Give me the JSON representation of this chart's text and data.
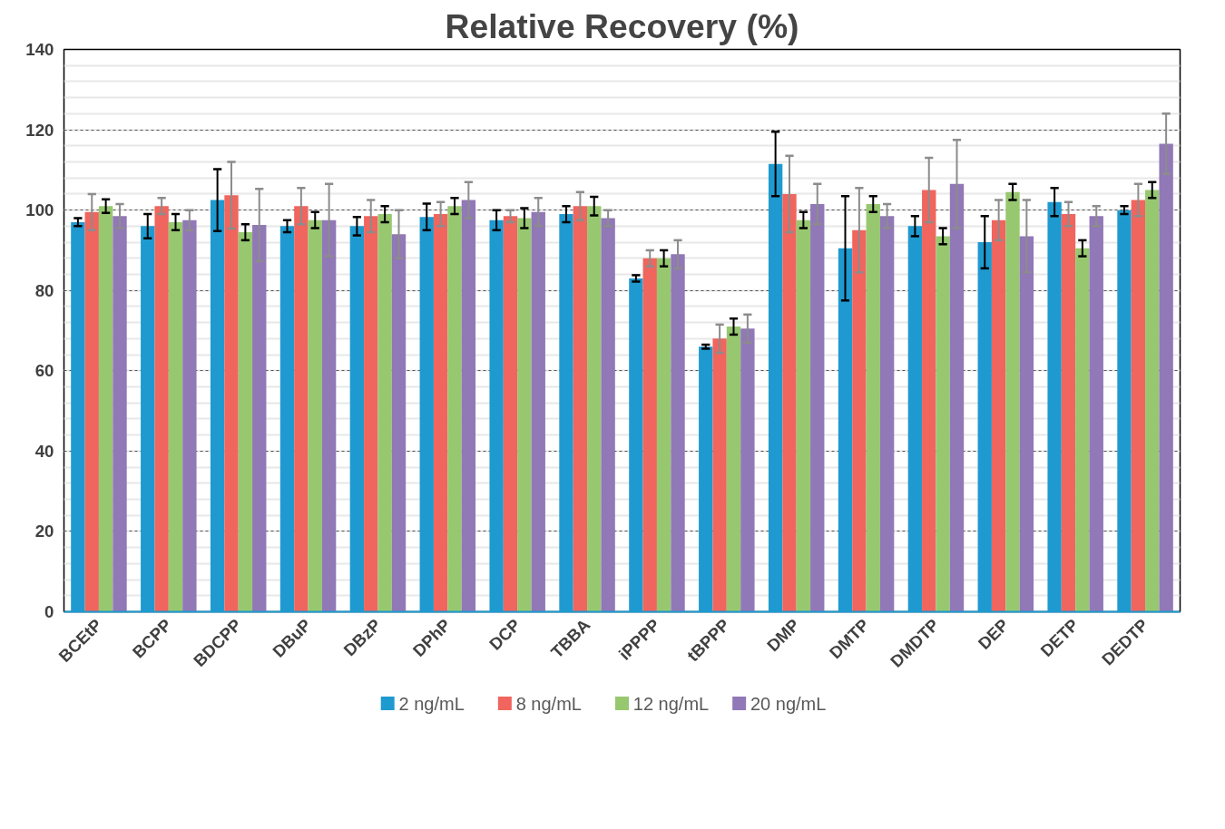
{
  "chart_data": {
    "type": "bar",
    "title": "Relative Recovery (%)",
    "categories": [
      "BCEtP",
      "BCPP",
      "BDCPP",
      "DBuP",
      "DBzP",
      "DPhP",
      "DCP",
      "TBBA",
      "iPPPP",
      "tBPPP",
      "DMP",
      "DMTP",
      "DMDTP",
      "DEP",
      "DETP",
      "DEDTP"
    ],
    "series": [
      {
        "name": "2 ng/mL",
        "color": "#1f9ad0",
        "values": [
          97,
          96,
          102.5,
          96,
          96,
          98.3,
          97.5,
          99,
          83,
          66,
          111.5,
          90.5,
          96,
          92,
          102,
          100
        ],
        "errors": [
          1,
          3,
          7.7,
          1.5,
          2.3,
          3.3,
          2.5,
          2,
          0.8,
          0.5,
          8,
          13,
          2.5,
          6.5,
          3.5,
          1
        ]
      },
      {
        "name": "8 ng/mL",
        "color": "#f0655e",
        "values": [
          99.5,
          101,
          103.7,
          101,
          98.5,
          99,
          98.5,
          101,
          88,
          68,
          104,
          95,
          105,
          97.5,
          99,
          102.5
        ],
        "errors": [
          4.5,
          2,
          8.3,
          4.5,
          4,
          3,
          1.5,
          3.5,
          2,
          3.5,
          9.5,
          10.5,
          8,
          5,
          3,
          4
        ]
      },
      {
        "name": "12 ng/mL",
        "color": "#97c870",
        "values": [
          101,
          97,
          94.5,
          97.5,
          99,
          101,
          98,
          101,
          88,
          71,
          97.5,
          101.5,
          93.5,
          104.5,
          90.5,
          105
        ],
        "errors": [
          1.7,
          2,
          2,
          2,
          2,
          2,
          2.5,
          2.3,
          2,
          2,
          2,
          2,
          2,
          2,
          2,
          2
        ]
      },
      {
        "name": "20 ng/mL",
        "color": "#9178b6",
        "values": [
          98.5,
          97.5,
          96.3,
          97.5,
          94,
          102.5,
          99.5,
          98,
          89,
          70.5,
          101.5,
          98.5,
          106.5,
          93.5,
          98.5,
          116.5
        ],
        "errors": [
          3,
          2.5,
          9,
          9,
          6,
          4.5,
          3.5,
          2,
          3.5,
          3.5,
          5,
          3,
          11,
          9,
          2.5,
          7.5
        ]
      }
    ],
    "ylim": [
      0,
      140
    ],
    "yticks": [
      0,
      20,
      40,
      60,
      80,
      100,
      120,
      140
    ],
    "grid": "y",
    "legend": "bottom"
  }
}
